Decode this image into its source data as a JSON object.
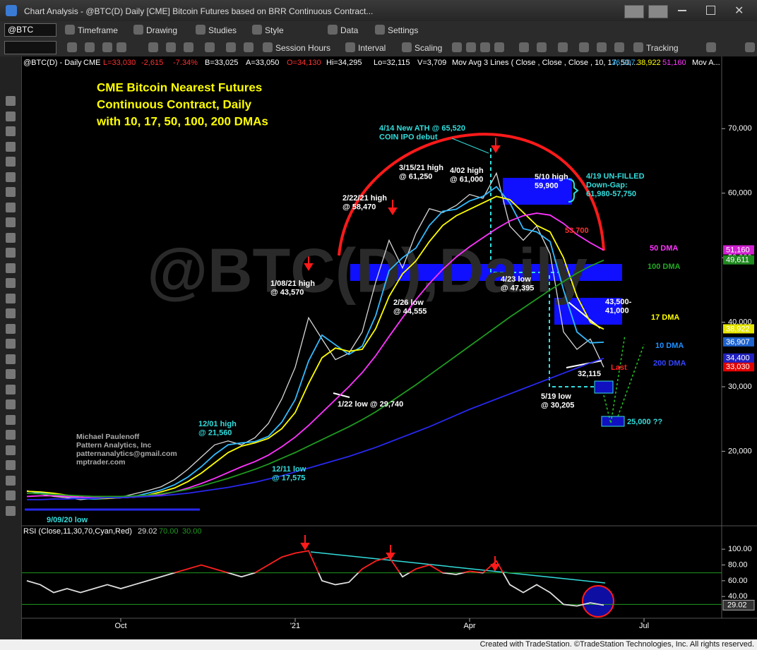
{
  "window": {
    "title": "Chart Analysis - @BTC(D) Daily [CME] Bitcoin Futures based on BRR Continuous Contract...",
    "symbol": "@BTC",
    "toolbar1": [
      "Timeframe",
      "Drawing",
      "Studies",
      "Style",
      "Data",
      "Settings"
    ],
    "toolbar2": [
      "Session Hours",
      "Interval",
      "Scaling",
      "Tracking"
    ],
    "footer": "Created with TradeStation. ©TradeStation Technologies, Inc. All rights reserved."
  },
  "status": {
    "symbol": "@BTC(D) - Daily",
    "exchange": "CME",
    "last": "L=33,030",
    "change": "-2,615",
    "pct": "-7.34%",
    "bid": "B=33,025",
    "ask": "A=33,050",
    "open": "O=34,130",
    "high": "Hi=34,295",
    "low": "Lo=32,115",
    "volume": "V=3,709",
    "study": "Mov Avg 3 Lines ( Close , Close , Close , 10, 17, 50,...",
    "study2": "Mov A..."
  },
  "watermark": "@BTC(D),Daily",
  "author": [
    "Michael Paulenoff",
    "Pattern Analytics, Inc",
    "patternanalytics@gmail.com",
    "mptrader.com"
  ],
  "annotations": [
    [
      "4/14 New ATH @ 65,520",
      "COIN IPO debut"
    ],
    [
      "3/15/21 high",
      "@ 61,250"
    ],
    [
      "4/02 high",
      "@ 61,000"
    ],
    [
      "2/22/21 high",
      "@ 58,470"
    ],
    [
      "5/10 high",
      "59,900"
    ],
    [
      "4/19 UN-FILLED",
      "Down-Gap:",
      "61,980-57,750"
    ],
    [
      "53,700"
    ],
    [
      "1/08/21 high",
      "@ 43,570"
    ],
    [
      "2/26 low",
      "@ 44,555"
    ],
    [
      "4/23 low",
      "@ 47,395"
    ],
    [
      "43,500-",
      "41,000"
    ],
    [
      "32,115"
    ],
    [
      "5/19 low",
      "@ 30,205"
    ],
    [
      "1/22 low @ 29,740"
    ],
    [
      "25,000 ??"
    ],
    [
      "12/01 high",
      "@ 21,560"
    ],
    [
      "12/11 low",
      "@ 17,575"
    ],
    [
      "9/09/20 low"
    ]
  ],
  "chart_data": [
    {
      "type": "line",
      "title": [
        "CME Bitcoin Nearest Futures",
        "Continuous Contract, Daily",
        "with 10, 17, 50, 100, 200 DMAs"
      ],
      "categories": [
        null,
        null,
        null,
        null,
        null,
        null,
        null,
        "Oct",
        null,
        null,
        null,
        null,
        null,
        null,
        null,
        null,
        null,
        null,
        null,
        null,
        "'21",
        null,
        null,
        null,
        null,
        null,
        null,
        null,
        null,
        null,
        null,
        null,
        null,
        "Apr",
        null,
        null,
        null,
        null,
        null,
        null,
        null,
        null,
        null,
        null,
        null,
        null,
        "Jul"
      ],
      "series": [
        {
          "name": "Last",
          "color": "#d8d8d8",
          "label_color": "#ff2020",
          "last_label": "33,030",
          "flag_color": "#e00000",
          "values": [
            13900,
            13400,
            13000,
            12800,
            12500,
            12700,
            12800,
            12900,
            13400,
            13900,
            14500,
            15600,
            17200,
            19100,
            21000,
            21600,
            21000,
            22100,
            24300,
            28100,
            33000,
            40700,
            37400,
            34200,
            35200,
            38500,
            46200,
            52700,
            48400,
            53800,
            57600,
            57000,
            58100,
            59800,
            59200,
            63100,
            54900,
            52700,
            54900,
            50600,
            38500,
            35800,
            37400,
            33030,
            null,
            null,
            null
          ]
        },
        {
          "name": "10 DMA",
          "color": "#33bbff",
          "label_color": "#1e90ff",
          "last_label": "36,907",
          "flag_color": "#1e64d0",
          "values": [
            13800,
            13600,
            13300,
            13000,
            12700,
            12600,
            12700,
            12800,
            13000,
            13500,
            14000,
            14800,
            16000,
            17600,
            19500,
            21000,
            21300,
            21500,
            22300,
            24500,
            28000,
            34000,
            38000,
            36500,
            35000,
            36300,
            41000,
            48000,
            50000,
            51500,
            55000,
            57200,
            57500,
            58800,
            59500,
            61000,
            58500,
            54500,
            54000,
            52500,
            45000,
            38500,
            36800,
            36907,
            null,
            null,
            null
          ]
        },
        {
          "name": "17 DMA",
          "color": "#ffff00",
          "label_color": "#ffff00",
          "last_label": "38,922",
          "flag_color": "#e6e600",
          "values": [
            13800,
            13700,
            13500,
            13200,
            12900,
            12700,
            12700,
            12800,
            12900,
            13200,
            13700,
            14300,
            15300,
            16600,
            18200,
            19800,
            20800,
            21300,
            22000,
            23500,
            26000,
            30500,
            34500,
            36000,
            35500,
            35800,
            39000,
            44000,
            47500,
            49500,
            52500,
            55000,
            56500,
            57500,
            58500,
            59500,
            59000,
            57000,
            55000,
            54000,
            50000,
            44000,
            40000,
            38922,
            null,
            null,
            null
          ]
        },
        {
          "name": "50 DMA",
          "color": "#ff33ff",
          "label_color": "#ff33ff",
          "last_label": "51,160",
          "flag_color": "#d020d0",
          "values": [
            13000,
            13100,
            13100,
            13000,
            12900,
            12800,
            12800,
            12800,
            12900,
            13100,
            13300,
            13700,
            14300,
            15000,
            15800,
            16700,
            17600,
            18400,
            19400,
            20700,
            22200,
            24000,
            26000,
            28000,
            30000,
            32200,
            34800,
            37800,
            40700,
            43500,
            46000,
            48200,
            50100,
            51700,
            53100,
            54500,
            55700,
            56500,
            56900,
            56600,
            55300,
            53600,
            52300,
            51160,
            null,
            null,
            null
          ]
        },
        {
          "name": "100 DMA",
          "color": "#1f9a1f",
          "label_color": "#22aa22",
          "last_label": "49,611",
          "flag_color": "#1f8a1f",
          "values": [
            13500,
            13400,
            13300,
            13200,
            13100,
            13000,
            13000,
            13000,
            13100,
            13200,
            13400,
            13700,
            14100,
            14600,
            15200,
            15800,
            16500,
            17200,
            18000,
            18900,
            19800,
            20800,
            21800,
            22800,
            23800,
            24900,
            26100,
            27500,
            28900,
            30300,
            31800,
            33300,
            34800,
            36300,
            37800,
            39300,
            40800,
            42200,
            43600,
            45000,
            46300,
            47600,
            48700,
            49611,
            null,
            null,
            null
          ]
        },
        {
          "name": "200 DMA",
          "color": "#2828f0",
          "label_color": "#3344ff",
          "last_label": "34,400",
          "flag_color": "#2020c0",
          "values": [
            12500,
            12500,
            12600,
            12600,
            12700,
            12700,
            12800,
            12800,
            12900,
            13000,
            13100,
            13300,
            13500,
            13800,
            14100,
            14400,
            14800,
            15200,
            15700,
            16200,
            16800,
            17400,
            18000,
            18600,
            19200,
            19900,
            20600,
            21400,
            22200,
            23000,
            23800,
            24700,
            25600,
            26500,
            27300,
            28100,
            28900,
            29700,
            30500,
            31300,
            32100,
            32900,
            33700,
            34400,
            null,
            null,
            null
          ]
        }
      ],
      "ylim": [
        9000,
        79000
      ],
      "yticks": [
        {
          "value": 20000,
          "label": "20,000"
        },
        {
          "value": 30000,
          "label": "30,000"
        },
        {
          "value": 40000,
          "label": "40,000"
        },
        {
          "value": 50000,
          "label": "50,000"
        },
        {
          "value": 60000,
          "label": "60,000"
        },
        {
          "value": 70000,
          "label": "70,000"
        }
      ],
      "grid": false
    },
    {
      "type": "line",
      "title": "RSI (Close,11,30,70,Cyan,Red)",
      "series": [
        {
          "name": "RSI",
          "color": "#e0e0e0",
          "over_color": "#ff2020",
          "values": [
            60,
            55,
            45,
            50,
            45,
            50,
            55,
            50,
            55,
            60,
            65,
            70,
            75,
            80,
            75,
            70,
            65,
            70,
            80,
            90,
            95,
            98,
            60,
            55,
            58,
            75,
            85,
            90,
            65,
            75,
            80,
            70,
            68,
            72,
            70,
            85,
            55,
            45,
            55,
            45,
            30,
            28,
            32,
            29.02,
            null,
            null,
            null
          ]
        }
      ],
      "levels": [
        {
          "value": 70,
          "label": "70.00"
        },
        {
          "value": 30,
          "label": "30.00"
        }
      ],
      "level_color": "#1f9a1f",
      "ylim": [
        16,
        127
      ],
      "yticks": [
        {
          "value": 40,
          "label": "40.00"
        },
        {
          "value": 60,
          "label": "60.00"
        },
        {
          "value": 80,
          "label": "80.00"
        },
        {
          "value": 100,
          "label": "100.00"
        }
      ],
      "grid": false
    }
  ]
}
